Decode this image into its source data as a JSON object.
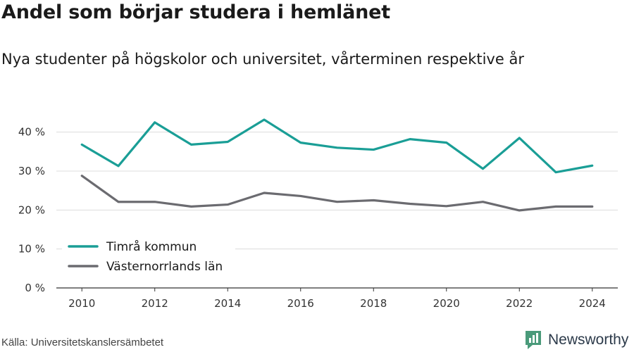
{
  "title": "Andel som börjar studera i hemlänet",
  "subtitle": "Nya studenter på högskolor och universitet, vårterminen respektive år",
  "source": "Källa: Universitetskanslersämbetet",
  "brand": {
    "name": "Newsworthy",
    "icon": "newsworthy-logo-icon",
    "color": "#2c3a4a",
    "accent": "#4a9a7a"
  },
  "chart_data": {
    "type": "line",
    "title": "Andel som börjar studera i hemlänet",
    "subtitle": "Nya studenter på högskolor och universitet, vårterminen respektive år",
    "xlabel": "",
    "ylabel": "",
    "x": [
      2010,
      2011,
      2012,
      2013,
      2014,
      2015,
      2016,
      2017,
      2018,
      2019,
      2020,
      2021,
      2022,
      2023,
      2024
    ],
    "xlim": [
      2009.3,
      2024.7
    ],
    "xticks": [
      2010,
      2012,
      2014,
      2016,
      2018,
      2020,
      2022,
      2024
    ],
    "xtick_labels": [
      "2010",
      "2012",
      "2014",
      "2016",
      "2018",
      "2020",
      "2022",
      "2024"
    ],
    "ylim": [
      0,
      45
    ],
    "yticks": [
      0,
      10,
      20,
      30,
      40
    ],
    "ytick_labels": [
      "0 %",
      "10 %",
      "20 %",
      "30 %",
      "40 %"
    ],
    "grid": "horizontal",
    "legend_position": "bottom-left",
    "series": [
      {
        "name": "Timrå kommun",
        "color": "#1a9e96",
        "values": [
          36.8,
          31.3,
          42.5,
          36.8,
          37.5,
          43.2,
          37.3,
          36.0,
          35.5,
          38.2,
          37.3,
          30.6,
          38.5,
          29.7,
          31.4
        ]
      },
      {
        "name": "Västernorrlands län",
        "color": "#6b6b70",
        "values": [
          28.8,
          22.1,
          22.1,
          20.9,
          21.4,
          24.4,
          23.6,
          22.1,
          22.5,
          21.6,
          21.0,
          22.1,
          19.9,
          20.9,
          20.9
        ]
      }
    ]
  }
}
